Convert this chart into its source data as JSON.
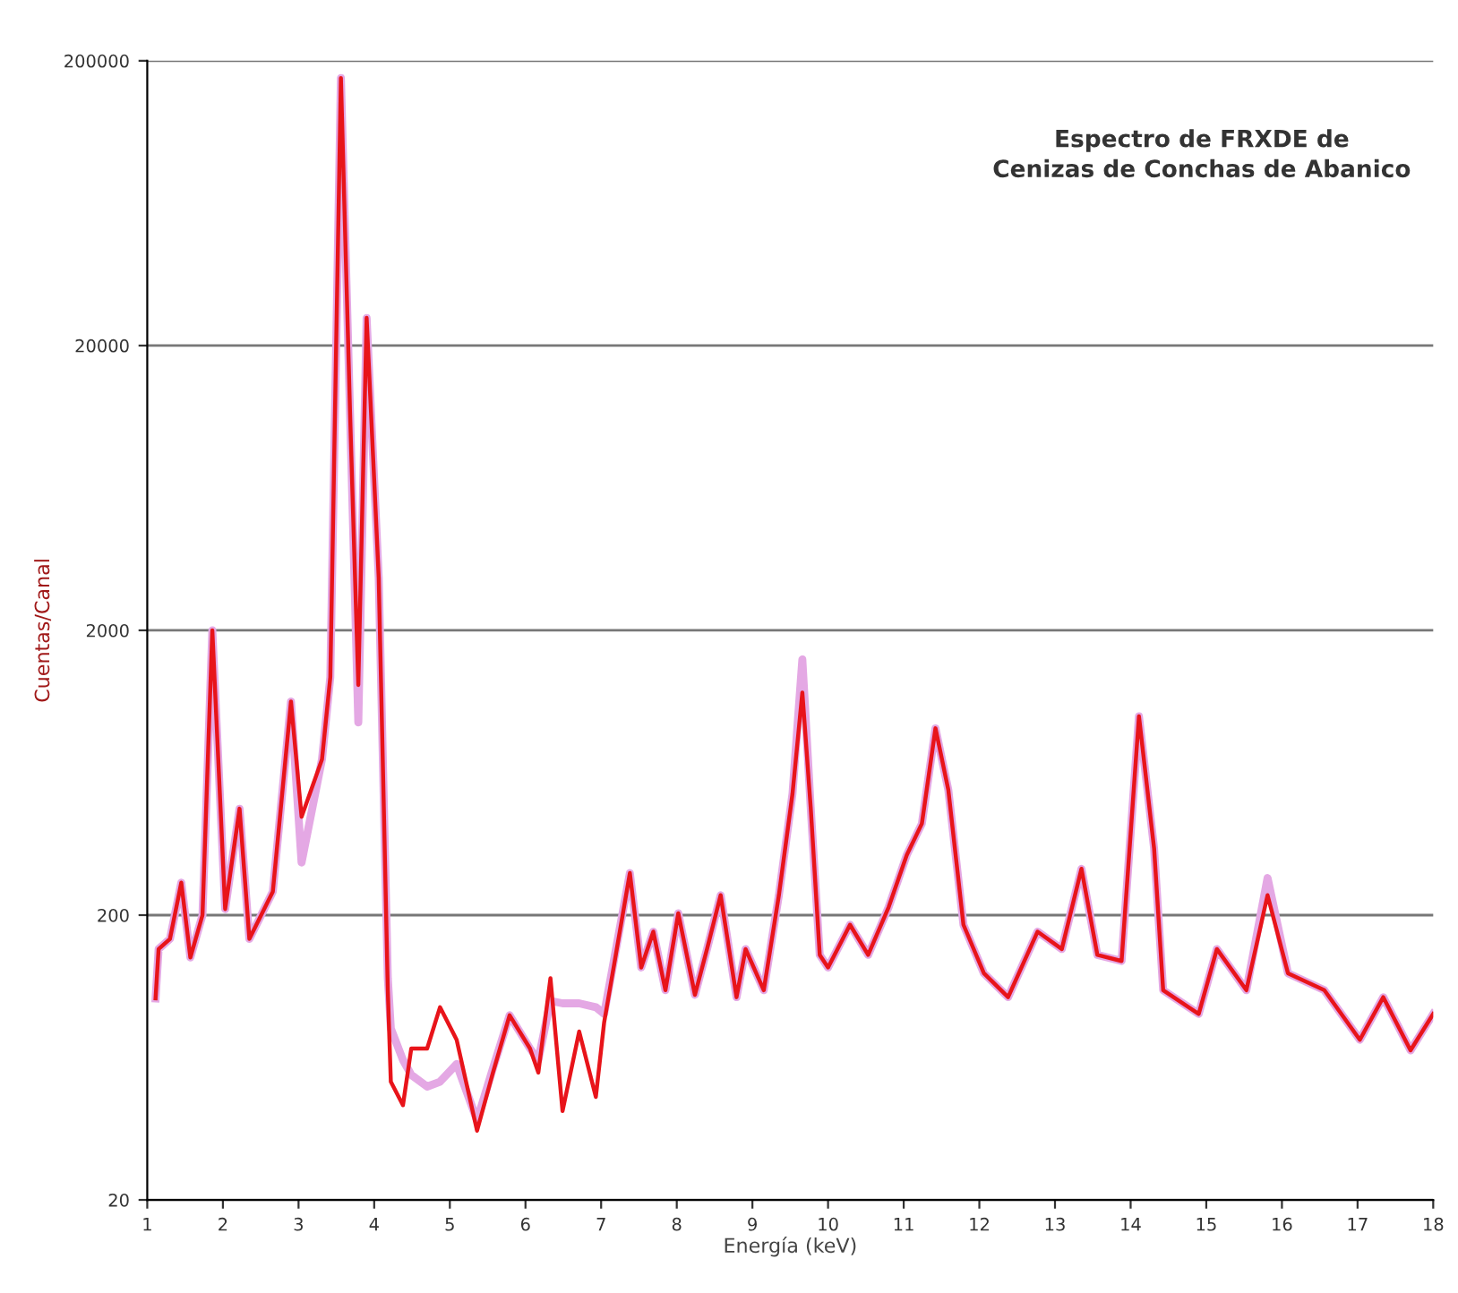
{
  "chart_data": {
    "type": "line",
    "title": "Espectro de FRXDE de\nCenizas de Conchas de Abanico",
    "xlabel": "Energía (keV)",
    "ylabel": "Cuentas/Canal",
    "log": "y",
    "grid": "y",
    "marker": "none",
    "line_style": "solid",
    "xlim": [
      1,
      18
    ],
    "xticks": [
      1,
      2,
      3,
      4,
      5,
      6,
      7,
      8,
      9,
      10,
      11,
      12,
      13,
      14,
      15,
      16,
      17,
      18
    ],
    "ylim": [
      20,
      200000
    ],
    "yticks": [
      20,
      200,
      2000,
      20000,
      200000
    ],
    "series": [
      {
        "color": "#e4a8e4",
        "x": [
          1.11,
          1.15,
          1.3,
          1.45,
          1.57,
          1.73,
          1.86,
          2.03,
          2.22,
          2.35,
          2.66,
          2.9,
          3.04,
          3.31,
          3.42,
          3.56,
          3.68,
          3.79,
          3.9,
          4.06,
          4.18,
          4.22,
          4.38,
          4.49,
          4.7,
          4.87,
          5.09,
          5.36,
          5.57,
          5.79,
          6.06,
          6.17,
          6.33,
          6.49,
          6.71,
          6.93,
          7.04,
          7.38,
          7.53,
          7.69,
          7.85,
          8.02,
          8.24,
          8.4,
          8.58,
          8.79,
          8.91,
          9.15,
          9.35,
          9.53,
          9.66,
          9.77,
          9.89,
          10.0,
          10.29,
          10.53,
          10.8,
          11.04,
          11.24,
          11.42,
          11.59,
          11.79,
          12.06,
          12.38,
          12.77,
          13.09,
          13.35,
          13.56,
          13.88,
          14.11,
          14.31,
          14.43,
          14.9,
          15.14,
          15.53,
          15.81,
          16.08,
          16.56,
          17.03,
          17.34,
          17.7,
          18.0
        ],
        "values": [
          102,
          152,
          165,
          260,
          142,
          200,
          2000,
          210,
          473,
          165,
          242,
          1125,
          306,
          705,
          1370,
          174000,
          11800,
          950,
          25000,
          3060,
          120,
          80,
          62,
          55,
          50,
          52,
          60,
          38,
          58,
          89,
          68,
          62,
          100,
          98,
          98,
          95,
          90,
          281,
          131,
          175,
          109,
          203,
          105,
          152,
          235,
          103,
          152,
          109,
          235,
          534,
          1580,
          480,
          145,
          131,
          185,
          145,
          213,
          325,
          419,
          906,
          550,
          185,
          125,
          103,
          175,
          152,
          291,
          145,
          138,
          998,
          343,
          109,
          90,
          152,
          109,
          270,
          125,
          109,
          73,
          103,
          67,
          90
        ]
      },
      {
        "color": "#e8141a",
        "x": [
          1.11,
          1.15,
          1.3,
          1.45,
          1.57,
          1.73,
          1.86,
          2.03,
          2.22,
          2.35,
          2.66,
          2.9,
          3.04,
          3.31,
          3.42,
          3.56,
          3.68,
          3.79,
          3.9,
          4.06,
          4.18,
          4.22,
          4.38,
          4.49,
          4.7,
          4.87,
          5.09,
          5.36,
          5.57,
          5.79,
          6.06,
          6.17,
          6.33,
          6.49,
          6.71,
          6.93,
          7.04,
          7.38,
          7.53,
          7.69,
          7.85,
          8.02,
          8.24,
          8.4,
          8.58,
          8.79,
          8.91,
          9.15,
          9.35,
          9.53,
          9.66,
          9.77,
          9.89,
          10.0,
          10.29,
          10.53,
          10.8,
          11.04,
          11.24,
          11.42,
          11.59,
          11.79,
          12.06,
          12.38,
          12.77,
          13.09,
          13.35,
          13.56,
          13.88,
          14.11,
          14.31,
          14.43,
          14.9,
          15.14,
          15.53,
          15.81,
          16.08,
          16.56,
          17.03,
          17.34,
          17.7,
          18.0
        ],
        "values": [
          102,
          152,
          165,
          260,
          142,
          200,
          2000,
          210,
          473,
          165,
          242,
          1125,
          443,
          705,
          1370,
          174000,
          11800,
          1285,
          25000,
          3060,
          109,
          52,
          43,
          68,
          68,
          95,
          73,
          35,
          56,
          89,
          68,
          56,
          120,
          41,
          78,
          46,
          84,
          281,
          131,
          175,
          109,
          203,
          105,
          152,
          235,
          103,
          152,
          109,
          235,
          534,
          1210,
          480,
          145,
          131,
          185,
          145,
          213,
          325,
          419,
          906,
          550,
          185,
          125,
          103,
          175,
          152,
          291,
          145,
          138,
          998,
          343,
          109,
          90,
          152,
          109,
          235,
          125,
          109,
          73,
          103,
          67,
          90
        ]
      }
    ]
  }
}
